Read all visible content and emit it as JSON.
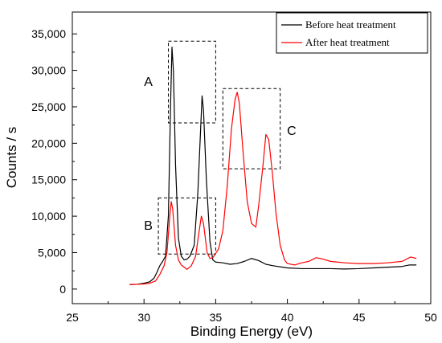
{
  "chart_data": {
    "type": "line",
    "xlabel": "Binding Energy (eV)",
    "ylabel": "Counts / s",
    "xlim": [
      25,
      50
    ],
    "ylim": [
      -2000,
      38000
    ],
    "xticks": [
      25,
      30,
      35,
      40,
      45,
      50
    ],
    "xtick_labels": [
      "25",
      "30",
      "35",
      "40",
      "45",
      "50"
    ],
    "yticks": [
      0,
      5000,
      10000,
      15000,
      20000,
      25000,
      30000,
      35000
    ],
    "ytick_labels": [
      "0",
      "5,000",
      "10,000",
      "15,000",
      "20,000",
      "25,000",
      "30,000",
      "35,000"
    ],
    "grid": false,
    "legend_position": "top-right",
    "series": [
      {
        "name": "Before heat treatment",
        "color": "#000000",
        "points": [
          [
            29.0,
            600
          ],
          [
            29.5,
            650
          ],
          [
            30.0,
            800
          ],
          [
            30.4,
            1000
          ],
          [
            30.7,
            1500
          ],
          [
            30.9,
            2300
          ],
          [
            31.1,
            3200
          ],
          [
            31.3,
            3800
          ],
          [
            31.5,
            4500
          ],
          [
            31.7,
            10000
          ],
          [
            31.85,
            25000
          ],
          [
            31.95,
            33200
          ],
          [
            32.05,
            30000
          ],
          [
            32.2,
            17000
          ],
          [
            32.4,
            7000
          ],
          [
            32.6,
            4500
          ],
          [
            32.8,
            4000
          ],
          [
            33.0,
            4100
          ],
          [
            33.2,
            4500
          ],
          [
            33.5,
            6000
          ],
          [
            33.75,
            13000
          ],
          [
            33.95,
            22000
          ],
          [
            34.05,
            26500
          ],
          [
            34.15,
            24500
          ],
          [
            34.35,
            15000
          ],
          [
            34.6,
            6500
          ],
          [
            34.8,
            4000
          ],
          [
            35.0,
            3700
          ],
          [
            35.5,
            3600
          ],
          [
            36.0,
            3400
          ],
          [
            36.5,
            3500
          ],
          [
            37.0,
            3800
          ],
          [
            37.5,
            4200
          ],
          [
            38.0,
            3900
          ],
          [
            38.5,
            3400
          ],
          [
            39.0,
            3200
          ],
          [
            40.0,
            2900
          ],
          [
            41.0,
            2800
          ],
          [
            42.0,
            2800
          ],
          [
            43.0,
            2800
          ],
          [
            44.0,
            2750
          ],
          [
            45.0,
            2800
          ],
          [
            46.0,
            2900
          ],
          [
            47.0,
            3000
          ],
          [
            48.0,
            3100
          ],
          [
            48.5,
            3300
          ],
          [
            49.0,
            3300
          ]
        ]
      },
      {
        "name": "After heat treatment",
        "color": "#ff0000",
        "points": [
          [
            29.0,
            600
          ],
          [
            29.5,
            650
          ],
          [
            30.0,
            700
          ],
          [
            30.4,
            800
          ],
          [
            30.8,
            1100
          ],
          [
            31.1,
            2000
          ],
          [
            31.4,
            3200
          ],
          [
            31.6,
            5000
          ],
          [
            31.8,
            10000
          ],
          [
            31.9,
            12000
          ],
          [
            32.0,
            11000
          ],
          [
            32.2,
            6000
          ],
          [
            32.4,
            4000
          ],
          [
            32.6,
            3300
          ],
          [
            32.8,
            3000
          ],
          [
            33.0,
            2700
          ],
          [
            33.3,
            3200
          ],
          [
            33.6,
            4500
          ],
          [
            33.85,
            8000
          ],
          [
            34.0,
            10000
          ],
          [
            34.15,
            9000
          ],
          [
            34.4,
            5000
          ],
          [
            34.6,
            4200
          ],
          [
            34.8,
            4300
          ],
          [
            35.2,
            5500
          ],
          [
            35.5,
            8000
          ],
          [
            35.8,
            14000
          ],
          [
            36.1,
            22000
          ],
          [
            36.35,
            26000
          ],
          [
            36.5,
            27000
          ],
          [
            36.65,
            25500
          ],
          [
            36.9,
            19000
          ],
          [
            37.2,
            12000
          ],
          [
            37.5,
            9000
          ],
          [
            37.8,
            8500
          ],
          [
            38.0,
            11500
          ],
          [
            38.3,
            17000
          ],
          [
            38.5,
            21200
          ],
          [
            38.7,
            20500
          ],
          [
            38.95,
            16000
          ],
          [
            39.2,
            10500
          ],
          [
            39.5,
            6000
          ],
          [
            39.8,
            4000
          ],
          [
            40.0,
            3500
          ],
          [
            40.5,
            3300
          ],
          [
            41.0,
            3600
          ],
          [
            41.5,
            3800
          ],
          [
            42.0,
            4300
          ],
          [
            42.5,
            4100
          ],
          [
            43.0,
            3800
          ],
          [
            43.5,
            3700
          ],
          [
            44.0,
            3600
          ],
          [
            45.0,
            3500
          ],
          [
            46.0,
            3500
          ],
          [
            47.0,
            3600
          ],
          [
            48.0,
            3800
          ],
          [
            48.6,
            4400
          ],
          [
            49.0,
            4200
          ]
        ]
      }
    ],
    "annotations": [
      {
        "label": "A",
        "box_x": [
          31.7,
          35.0
        ],
        "box_y": [
          22800,
          34000
        ],
        "label_at": [
          30.3,
          28500
        ]
      },
      {
        "label": "B",
        "box_x": [
          31.0,
          35.0
        ],
        "box_y": [
          4800,
          12500
        ],
        "label_at": [
          30.3,
          8800
        ]
      },
      {
        "label": "C",
        "box_x": [
          35.5,
          39.5
        ],
        "box_y": [
          16500,
          27500
        ],
        "label_at": [
          40.3,
          21800
        ]
      }
    ]
  }
}
